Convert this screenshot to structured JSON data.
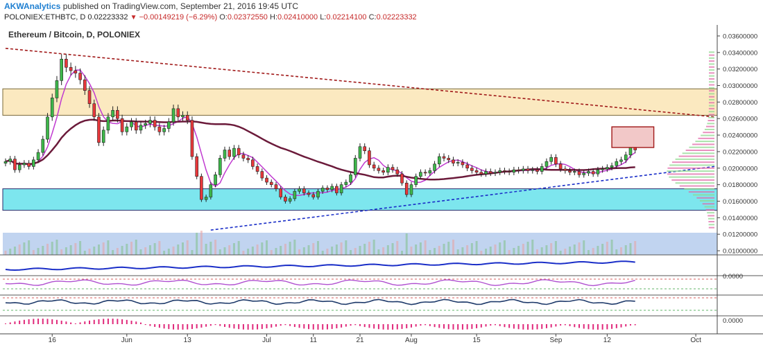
{
  "header": {
    "author": "AKWAnalytics",
    "published": "published on TradingView.com, September 21, 2016 19:45 UTC",
    "symbol": "POLONIEX:ETHBTC, D",
    "last": "0.02223332",
    "change": "−0.00149219 (−6.29%)",
    "o_label": "O:",
    "o": "0.02372550",
    "h_label": "H:",
    "h": "0.02410000",
    "l_label": "L:",
    "l": "0.02214100",
    "c_label": "C:",
    "c": "0.02223332"
  },
  "colors": {
    "up": "#3db84a",
    "down": "#e8383b",
    "ma_dark": "#6b1a3a",
    "ma_light": "#c03ad0",
    "resistance_zone": "#fbe9c0",
    "support_zone": "#7de6ee",
    "trend_down": "#a01818",
    "trend_up": "#1a2ec8"
  },
  "chart_data": {
    "type": "candlestick",
    "title": "Ethereum / Bitcoin, D, POLONIEX",
    "ylim": [
      0.0095,
      0.037
    ],
    "y_ticks": [
      "0.03600000",
      "0.03400000",
      "0.03200000",
      "0.03000000",
      "0.02800000",
      "0.02600000",
      "0.02400000",
      "0.02200000",
      "0.02000000",
      "0.01800000",
      "0.01600000",
      "0.01400000",
      "0.01200000",
      "0.01000000"
    ],
    "x_ticks": [
      {
        "label": "16",
        "day": 10
      },
      {
        "label": "Jun",
        "day": 26
      },
      {
        "label": "13",
        "day": 39
      },
      {
        "label": "Jul",
        "day": 56
      },
      {
        "label": "11",
        "day": 66
      },
      {
        "label": "21",
        "day": 76
      },
      {
        "label": "Aug",
        "day": 87
      },
      {
        "label": "15",
        "day": 101
      },
      {
        "label": "Sep",
        "day": 118
      },
      {
        "label": "12",
        "day": 129
      },
      {
        "label": "Oct",
        "day": 148
      }
    ],
    "zones": [
      {
        "name": "resistance",
        "from": 0.0264,
        "to": 0.0296
      },
      {
        "name": "support",
        "from": 0.0149,
        "to": 0.0175
      }
    ],
    "trendlines": [
      {
        "name": "falling",
        "x": [
          0,
          152
        ],
        "y": [
          0.0345,
          0.0262
        ]
      },
      {
        "name": "rising",
        "x": [
          44,
          152
        ],
        "y": [
          0.0125,
          0.0202
        ]
      }
    ],
    "box_annotation": {
      "x": [
        130,
        139
      ],
      "y": [
        0.0225,
        0.025
      ]
    },
    "close_series": [
      0.0208,
      0.0211,
      0.0198,
      0.0204,
      0.0206,
      0.0202,
      0.021,
      0.0219,
      0.0235,
      0.0262,
      0.0285,
      0.0306,
      0.0332,
      0.0322,
      0.0318,
      0.0315,
      0.0307,
      0.0294,
      0.0278,
      0.0262,
      0.0231,
      0.0246,
      0.0262,
      0.027,
      0.026,
      0.0244,
      0.025,
      0.0256,
      0.0246,
      0.0252,
      0.0254,
      0.0258,
      0.025,
      0.0244,
      0.0248,
      0.0256,
      0.0272,
      0.0262,
      0.0264,
      0.0258,
      0.0214,
      0.019,
      0.0162,
      0.0165,
      0.018,
      0.0192,
      0.0212,
      0.0222,
      0.0214,
      0.0224,
      0.0216,
      0.0212,
      0.021,
      0.0202,
      0.0196,
      0.0188,
      0.0183,
      0.018,
      0.0175,
      0.0165,
      0.016,
      0.0163,
      0.0172,
      0.0175,
      0.017,
      0.0168,
      0.0165,
      0.0172,
      0.0176,
      0.0174,
      0.0178,
      0.017,
      0.018,
      0.0183,
      0.0192,
      0.0212,
      0.0226,
      0.0221,
      0.0204,
      0.02,
      0.0197,
      0.0195,
      0.0201,
      0.0198,
      0.0193,
      0.0182,
      0.0168,
      0.018,
      0.019,
      0.0195,
      0.0194,
      0.0197,
      0.0205,
      0.0214,
      0.0212,
      0.021,
      0.0206,
      0.0207,
      0.0204,
      0.02,
      0.0197,
      0.0195,
      0.0193,
      0.0196,
      0.0194,
      0.0195,
      0.0197,
      0.0196,
      0.0195,
      0.0198,
      0.0197,
      0.0199,
      0.0197,
      0.0198,
      0.0196,
      0.0202,
      0.0208,
      0.0213,
      0.0205,
      0.0199,
      0.0197,
      0.0195,
      0.0196,
      0.0192,
      0.0194,
      0.0196,
      0.0193,
      0.0198,
      0.0199,
      0.0201,
      0.0203,
      0.0208,
      0.021,
      0.0216,
      0.0238,
      0.0222
    ]
  }
}
